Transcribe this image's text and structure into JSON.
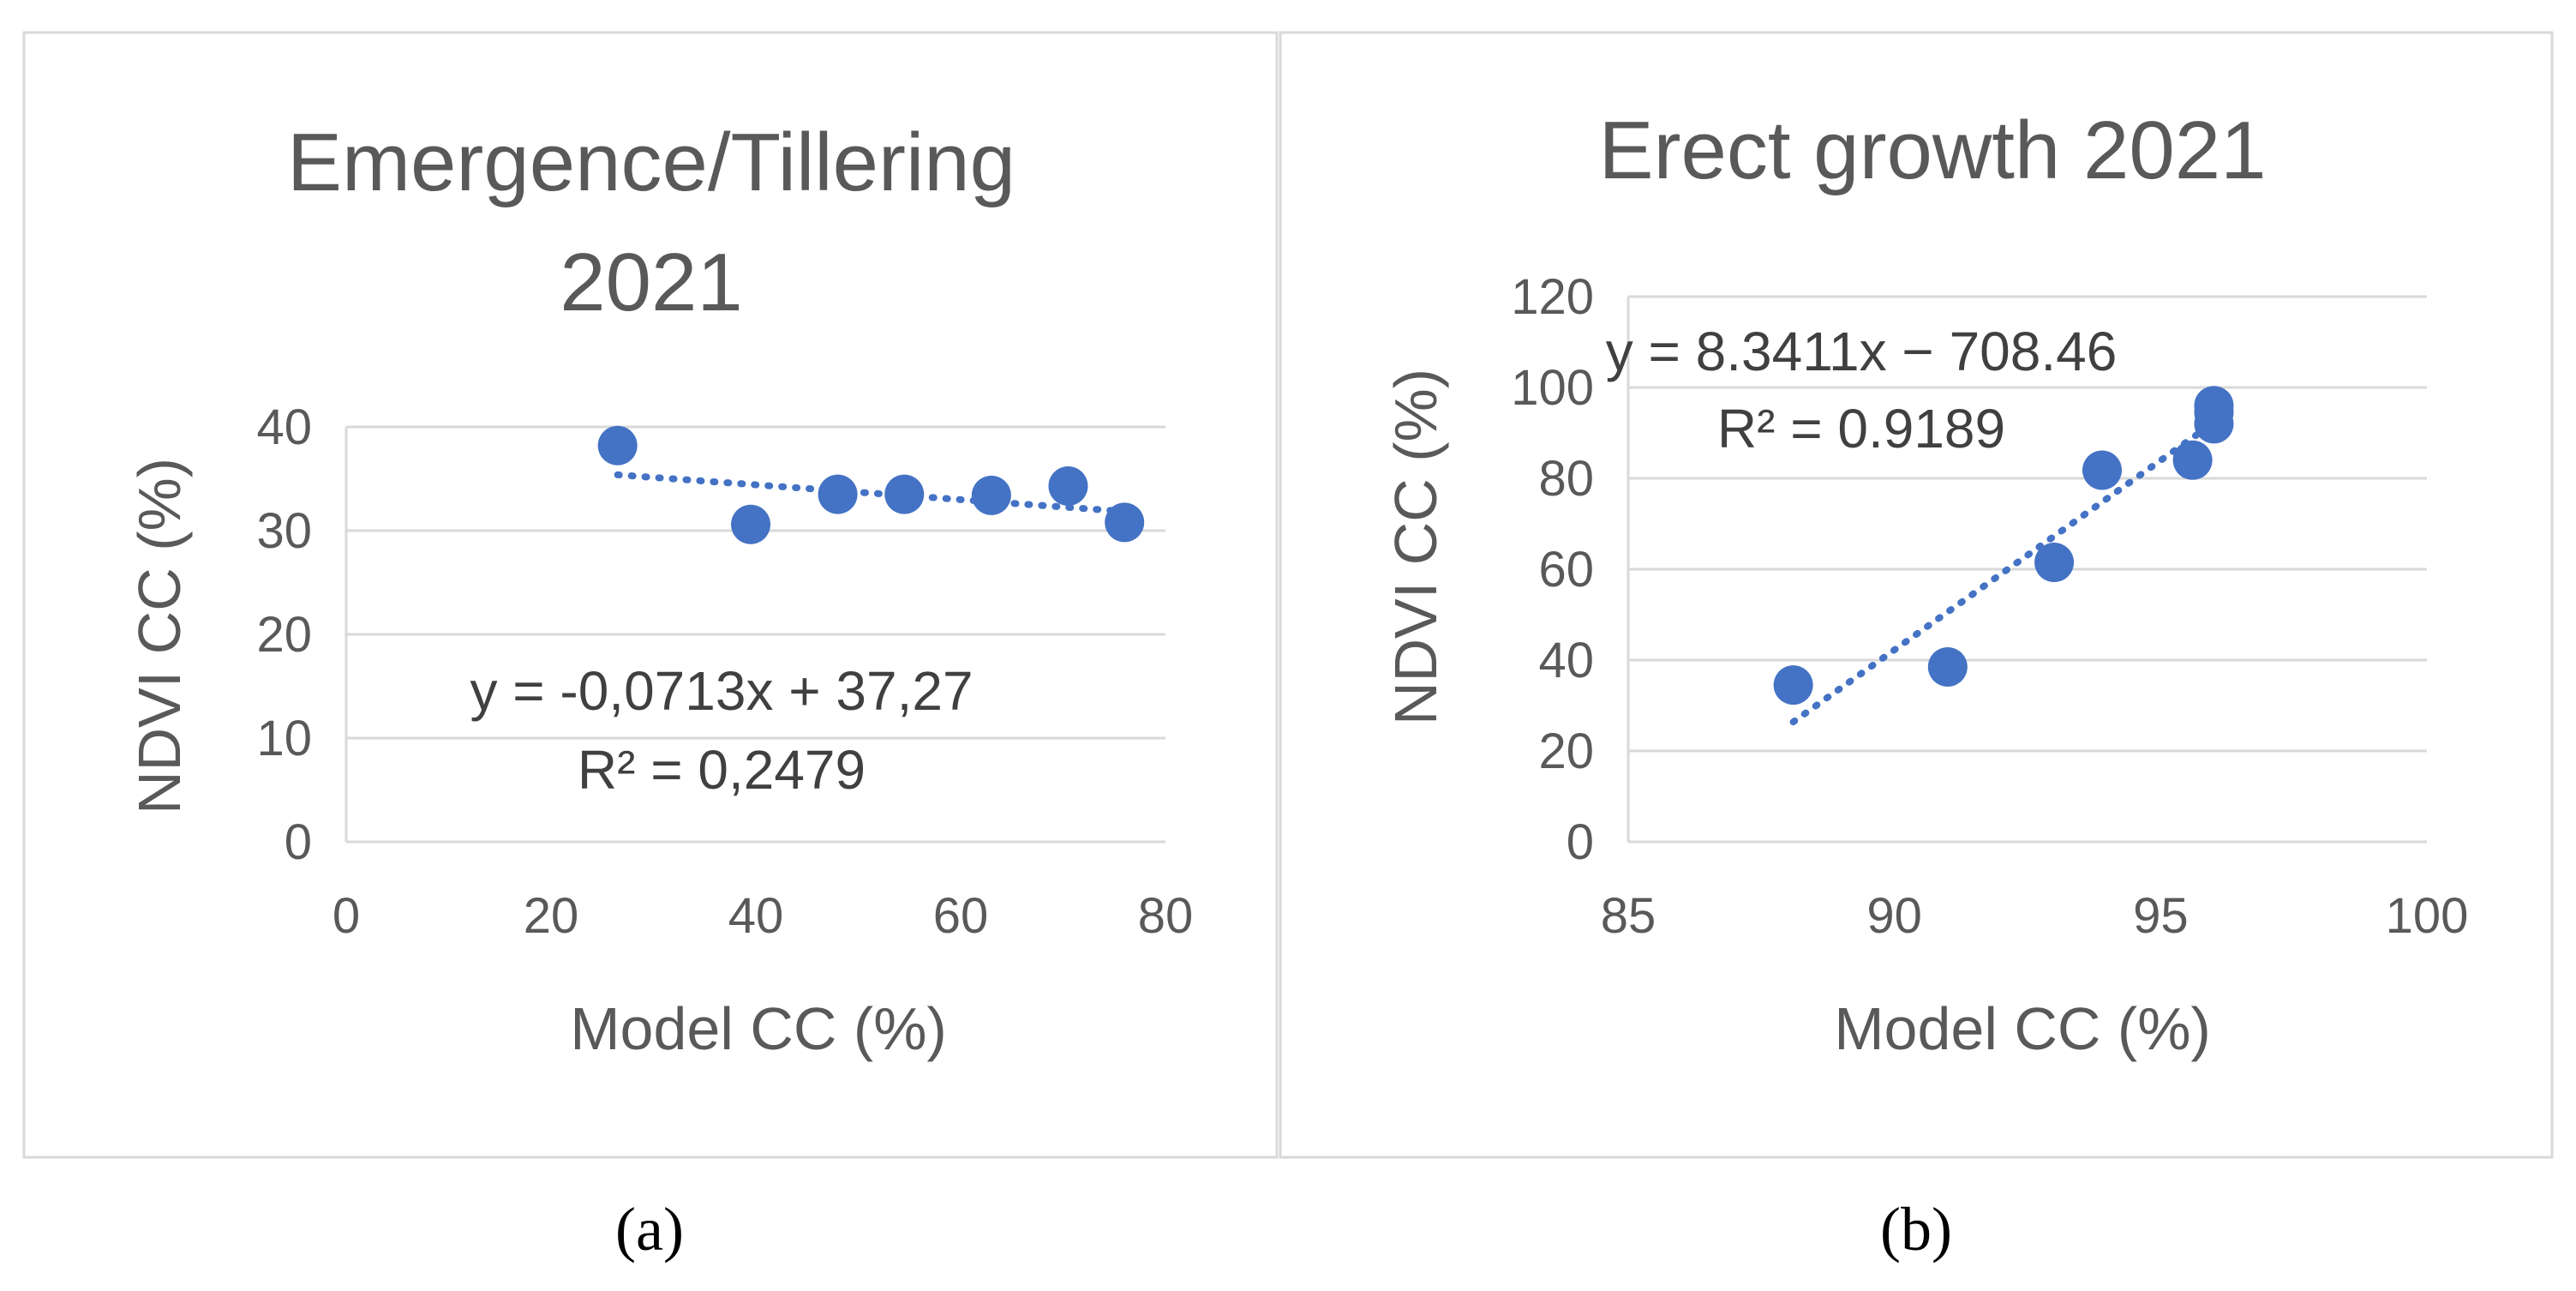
{
  "colors": {
    "marker": "#4472C4",
    "trendline": "#4472C4",
    "gridline": "#D9D9D9",
    "text": "#595959",
    "frame": "#D9D9D9"
  },
  "chart_data": [
    {
      "type": "scatter",
      "title_lines": [
        "Emergence/Tillering",
        "2021"
      ],
      "xlabel": "Model CC (%)",
      "ylabel": "NDVI CC (%)",
      "xlim": [
        0,
        80
      ],
      "ylim": [
        0,
        40
      ],
      "xticks": [
        0,
        20,
        40,
        60,
        80
      ],
      "yticks": [
        0,
        10,
        20,
        30,
        40
      ],
      "xtick_labels": [
        "0",
        "20",
        "40",
        "60",
        "80"
      ],
      "ytick_labels": [
        "0",
        "10",
        "20",
        "30",
        "40"
      ],
      "gridlines": "horizontal",
      "series": [
        {
          "name": "NDVI CC",
          "x": [
            26.5,
            39.5,
            48,
            54.5,
            63,
            70.5,
            76
          ],
          "y": [
            38.2,
            30.6,
            33.5,
            33.5,
            33.4,
            34.3,
            30.8
          ]
        }
      ],
      "trendline": {
        "type": "linear",
        "slope": -0.0713,
        "intercept": 37.27,
        "x_range": [
          26.5,
          76
        ],
        "equation": "y = -0,0713x + 37,27",
        "r_squared": "R² = 0,2479"
      },
      "caption": "(a)"
    },
    {
      "type": "scatter",
      "title_lines": [
        "Erect growth 2021"
      ],
      "xlabel": "Model CC (%)",
      "ylabel": "NDVI CC (%)",
      "xlim": [
        85,
        100
      ],
      "ylim": [
        0,
        120
      ],
      "xticks": [
        85,
        90,
        95,
        100
      ],
      "yticks": [
        0,
        20,
        40,
        60,
        80,
        100,
        120
      ],
      "xtick_labels": [
        "85",
        "90",
        "95",
        "100"
      ],
      "ytick_labels": [
        "0",
        "20",
        "40",
        "60",
        "80",
        "100",
        "120"
      ],
      "gridlines": "horizontal",
      "series": [
        {
          "name": "NDVI CC",
          "x": [
            88.1,
            91,
            93,
            93.9,
            95.6,
            96,
            96,
            96
          ],
          "y": [
            34.5,
            38.5,
            61.5,
            81.8,
            84,
            92,
            94.5,
            96
          ]
        }
      ],
      "trendline": {
        "type": "linear",
        "slope": 8.3411,
        "intercept": -708.46,
        "x_range": [
          88.1,
          96
        ],
        "equation": "y = 8.3411x − 708.46",
        "r_squared": "R² = 0.9189"
      },
      "caption": "(b)"
    }
  ]
}
